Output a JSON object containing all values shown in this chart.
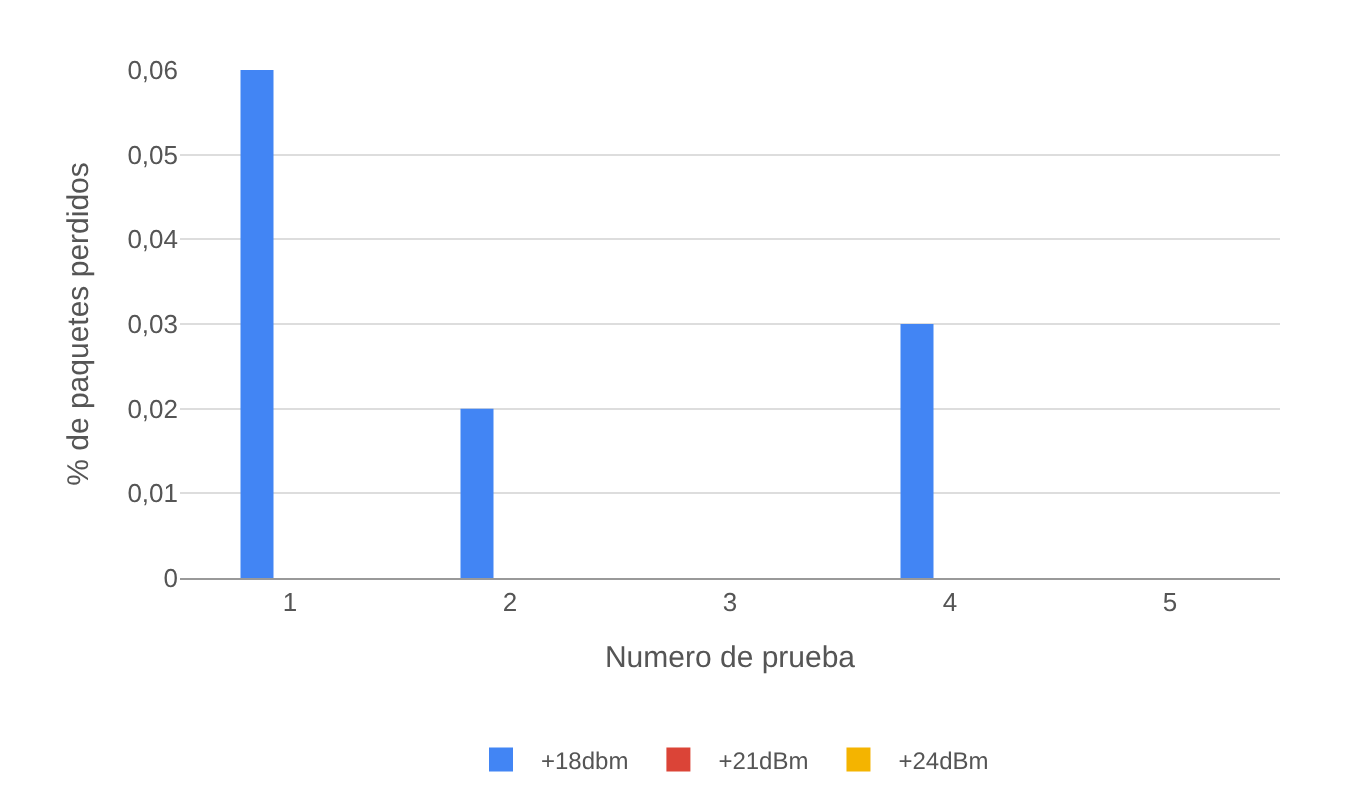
{
  "chart_data": {
    "type": "bar",
    "xlabel": "Numero de prueba",
    "ylabel": "% de paquetes perdidos",
    "categories": [
      "1",
      "2",
      "3",
      "4",
      "5"
    ],
    "series": [
      {
        "name": "+18dbm",
        "color": "#4285f4",
        "values": [
          0.06,
          0.02,
          0,
          0.03,
          0
        ]
      },
      {
        "name": "+21dBm",
        "color": "#db4437",
        "values": [
          0,
          0,
          0,
          0,
          0
        ]
      },
      {
        "name": "+24dBm",
        "color": "#f4b400",
        "values": [
          0,
          0,
          0,
          0,
          0
        ]
      }
    ],
    "ylim": [
      0,
      0.06
    ],
    "yticks": [
      {
        "value": 0,
        "label": "0"
      },
      {
        "value": 0.01,
        "label": "0,01"
      },
      {
        "value": 0.02,
        "label": "0,02"
      },
      {
        "value": 0.03,
        "label": "0,03"
      },
      {
        "value": 0.04,
        "label": "0,04"
      },
      {
        "value": 0.05,
        "label": "0,05"
      },
      {
        "value": 0.06,
        "label": "0,06"
      }
    ],
    "grid": "y",
    "legend": "bottom"
  }
}
